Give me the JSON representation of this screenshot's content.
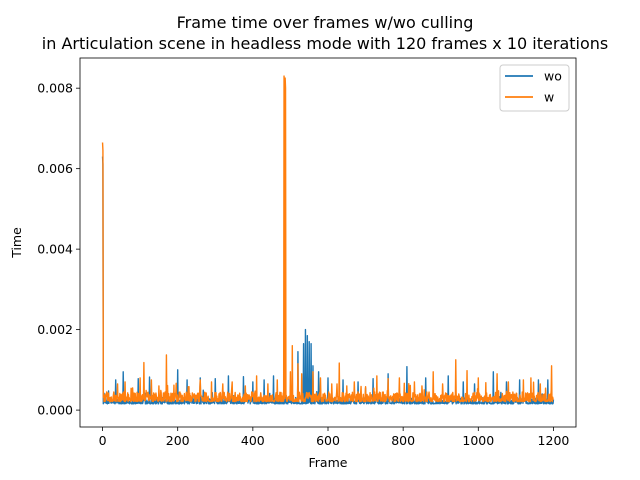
{
  "chart_data": {
    "type": "line",
    "title": [
      "Frame time over frames w/wo culling",
      "in Articulation scene in headless mode with 120 frames x 10 iterations"
    ],
    "xlabel": "Frame",
    "ylabel": "Time",
    "xlim": [
      -60,
      1260
    ],
    "ylim": [
      -0.00042,
      0.00875
    ],
    "x_ticks": [
      0,
      200,
      400,
      600,
      800,
      1000,
      1200
    ],
    "x_tick_labels": [
      "0",
      "200",
      "400",
      "600",
      "800",
      "1000",
      "1200"
    ],
    "y_ticks": [
      0,
      0.002,
      0.004,
      0.006,
      0.008
    ],
    "y_tick_labels": [
      "0.000",
      "0.002",
      "0.004",
      "0.006",
      "0.008"
    ],
    "grid": false,
    "legend": "top-right",
    "frame_count": 1200,
    "series": [
      {
        "name": "wo",
        "color": "#1f77b4",
        "baseline": 0.00018,
        "noise": 0.0001,
        "spikes": [
          [
            0,
            0.0063
          ],
          [
            35,
            0.00075
          ],
          [
            55,
            0.00095
          ],
          [
            95,
            0.00078
          ],
          [
            125,
            0.00082
          ],
          [
            170,
            0.0007
          ],
          [
            200,
            0.001
          ],
          [
            225,
            0.00075
          ],
          [
            260,
            0.0008
          ],
          [
            300,
            0.00078
          ],
          [
            335,
            0.00085
          ],
          [
            375,
            0.00083
          ],
          [
            400,
            0.0007
          ],
          [
            430,
            0.00075
          ],
          [
            455,
            0.00085
          ],
          [
            485,
            0.008
          ],
          [
            520,
            0.00145
          ],
          [
            535,
            0.00165
          ],
          [
            540,
            0.002
          ],
          [
            545,
            0.00185
          ],
          [
            550,
            0.0017
          ],
          [
            555,
            0.00165
          ],
          [
            560,
            0.0011
          ],
          [
            575,
            0.00095
          ],
          [
            600,
            0.0008
          ],
          [
            640,
            0.00075
          ],
          [
            680,
            0.0007
          ],
          [
            700,
            0.00055
          ],
          [
            720,
            0.00078
          ],
          [
            760,
            0.0009
          ],
          [
            810,
            0.00108
          ],
          [
            860,
            0.0008
          ],
          [
            920,
            0.00085
          ],
          [
            960,
            0.0007
          ],
          [
            990,
            0.00065
          ],
          [
            1040,
            0.00095
          ],
          [
            1075,
            0.0007
          ],
          [
            1110,
            0.00075
          ],
          [
            1160,
            0.00075
          ],
          [
            1185,
            0.00075
          ]
        ]
      },
      {
        "name": "w",
        "color": "#ff7f0e",
        "baseline": 0.00025,
        "noise": 0.00015,
        "spikes": [
          [
            0,
            0.00665
          ],
          [
            40,
            0.00065
          ],
          [
            60,
            0.0007
          ],
          [
            80,
            0.00055
          ],
          [
            100,
            0.0008
          ],
          [
            110,
            0.00118
          ],
          [
            130,
            0.00075
          ],
          [
            150,
            0.0006
          ],
          [
            170,
            0.00137
          ],
          [
            190,
            0.00062
          ],
          [
            230,
            0.00058
          ],
          [
            260,
            0.00075
          ],
          [
            290,
            0.0007
          ],
          [
            320,
            0.00065
          ],
          [
            345,
            0.0007
          ],
          [
            380,
            0.0006
          ],
          [
            410,
            0.00085
          ],
          [
            440,
            0.00065
          ],
          [
            465,
            0.00075
          ],
          [
            483,
            0.0083
          ],
          [
            486,
            0.00825
          ],
          [
            500,
            0.00095
          ],
          [
            505,
            0.0016
          ],
          [
            520,
            0.00115
          ],
          [
            530,
            0.0009
          ],
          [
            560,
            0.00095
          ],
          [
            580,
            0.0008
          ],
          [
            610,
            0.00065
          ],
          [
            630,
            0.00117
          ],
          [
            650,
            0.0006
          ],
          [
            670,
            0.0007
          ],
          [
            700,
            0.00058
          ],
          [
            730,
            0.00085
          ],
          [
            760,
            0.00078
          ],
          [
            790,
            0.0008
          ],
          [
            830,
            0.0007
          ],
          [
            850,
            0.0006
          ],
          [
            880,
            0.00095
          ],
          [
            905,
            0.00065
          ],
          [
            940,
            0.00125
          ],
          [
            970,
            0.00098
          ],
          [
            1000,
            0.0008
          ],
          [
            1020,
            0.00068
          ],
          [
            1050,
            0.0009
          ],
          [
            1080,
            0.0007
          ],
          [
            1120,
            0.00075
          ],
          [
            1140,
            0.0008
          ],
          [
            1165,
            0.00065
          ],
          [
            1195,
            0.0011
          ]
        ]
      }
    ]
  }
}
